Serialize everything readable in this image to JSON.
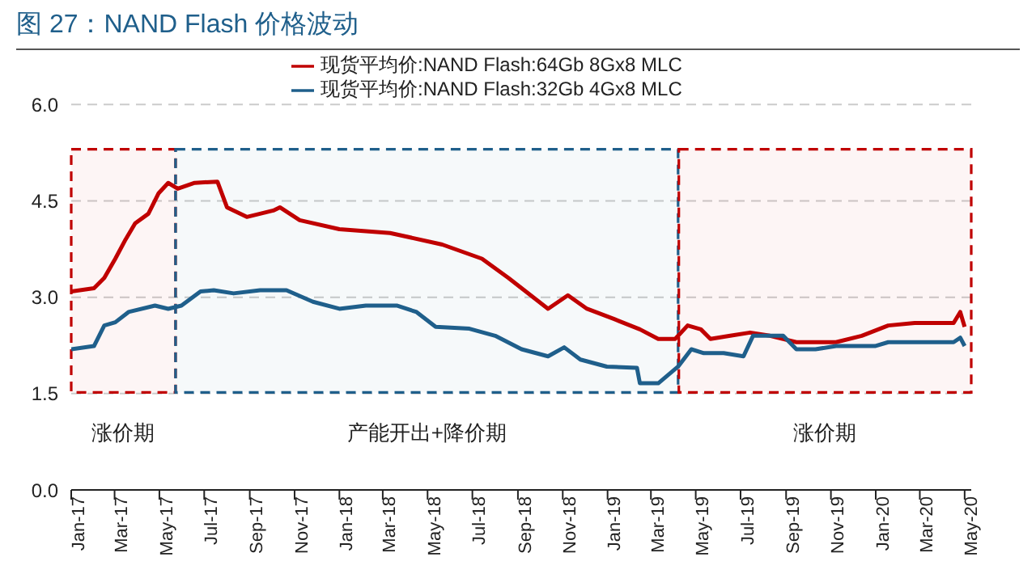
{
  "chart_data": {
    "type": "line",
    "title": "图 27：NAND Flash 价格波动",
    "series": [
      {
        "name": "现货平均价:NAND Flash:64Gb 8Gx8 MLC",
        "color": "#c00000",
        "x": [
          "2017-01-01",
          "2017-02-01",
          "2017-02-15",
          "2017-03-02",
          "2017-03-16",
          "2017-03-29",
          "2017-04-16",
          "2017-04-30",
          "2017-05-13",
          "2017-05-26",
          "2017-06-18",
          "2017-07-19",
          "2017-08-01",
          "2017-08-28",
          "2017-10-03",
          "2017-10-12",
          "2017-11-08",
          "2018-01-01",
          "2018-03-11",
          "2018-05-21",
          "2018-07-14",
          "2018-08-19",
          "2018-10-12",
          "2018-11-08",
          "2018-12-04",
          "2019-01-10",
          "2019-02-14",
          "2019-03-11",
          "2019-04-03",
          "2019-04-20",
          "2019-05-08",
          "2019-05-21",
          "2019-06-17",
          "2019-07-14",
          "2019-08-10",
          "2019-09-15",
          "2019-11-08",
          "2019-12-13",
          "2020-01-18",
          "2020-02-23",
          "2020-04-16",
          "2020-04-25",
          "2020-05-01"
        ],
        "values": [
          3.09,
          3.14,
          3.3,
          3.6,
          3.9,
          4.15,
          4.3,
          4.62,
          4.78,
          4.69,
          4.78,
          4.8,
          4.4,
          4.25,
          4.35,
          4.4,
          4.2,
          4.06,
          4.0,
          3.82,
          3.6,
          3.3,
          2.82,
          3.03,
          2.82,
          2.66,
          2.5,
          2.35,
          2.35,
          2.56,
          2.5,
          2.35,
          2.4,
          2.45,
          2.4,
          2.3,
          2.3,
          2.4,
          2.56,
          2.6,
          2.6,
          2.77,
          2.54
        ]
      },
      {
        "name": "现货平均价:NAND Flash:32Gb 4Gx8 MLC",
        "color": "#1f5f8b",
        "x": [
          "2017-01-01",
          "2017-02-01",
          "2017-02-15",
          "2017-03-02",
          "2017-03-20",
          "2017-04-25",
          "2017-05-13",
          "2017-05-31",
          "2017-06-26",
          "2017-07-14",
          "2017-08-10",
          "2017-09-15",
          "2017-10-21",
          "2017-11-26",
          "2018-01-01",
          "2018-02-06",
          "2018-03-20",
          "2018-04-16",
          "2018-05-12",
          "2018-06-27",
          "2018-08-01",
          "2018-09-06",
          "2018-10-12",
          "2018-11-03",
          "2018-11-25",
          "2018-12-31",
          "2019-02-10",
          "2019-02-14",
          "2019-03-11",
          "2019-04-07",
          "2019-04-25",
          "2019-05-12",
          "2019-06-08",
          "2019-07-05",
          "2019-07-18",
          "2019-08-28",
          "2019-09-15",
          "2019-10-11",
          "2019-11-08",
          "2019-12-31",
          "2020-01-18",
          "2020-04-16",
          "2020-04-25",
          "2020-05-01"
        ],
        "values": [
          2.19,
          2.24,
          2.56,
          2.61,
          2.77,
          2.87,
          2.82,
          2.87,
          3.09,
          3.11,
          3.06,
          3.11,
          3.11,
          2.93,
          2.82,
          2.87,
          2.87,
          2.77,
          2.54,
          2.51,
          2.4,
          2.19,
          2.08,
          2.22,
          2.03,
          1.92,
          1.9,
          1.66,
          1.66,
          1.92,
          2.19,
          2.13,
          2.13,
          2.08,
          2.4,
          2.4,
          2.19,
          2.19,
          2.24,
          2.24,
          2.3,
          2.3,
          2.37,
          2.24
        ]
      }
    ],
    "xlim": [
      "2017-01-01",
      "2020-05-10"
    ],
    "xticks": [
      {
        "value": "2017-01-01",
        "label": "Jan-17"
      },
      {
        "value": "2017-03-01",
        "label": "Mar-17"
      },
      {
        "value": "2017-05-01",
        "label": "May-17"
      },
      {
        "value": "2017-07-01",
        "label": "Jul-17"
      },
      {
        "value": "2017-09-01",
        "label": "Sep-17"
      },
      {
        "value": "2017-11-01",
        "label": "Nov-17"
      },
      {
        "value": "2018-01-01",
        "label": "Jan-18"
      },
      {
        "value": "2018-03-01",
        "label": "Mar-18"
      },
      {
        "value": "2018-05-01",
        "label": "May-18"
      },
      {
        "value": "2018-07-01",
        "label": "Jul-18"
      },
      {
        "value": "2018-09-01",
        "label": "Sep-18"
      },
      {
        "value": "2018-11-01",
        "label": "Nov-18"
      },
      {
        "value": "2019-01-01",
        "label": "Jan-19"
      },
      {
        "value": "2019-03-01",
        "label": "Mar-19"
      },
      {
        "value": "2019-05-01",
        "label": "May-19"
      },
      {
        "value": "2019-07-01",
        "label": "Jul-19"
      },
      {
        "value": "2019-09-01",
        "label": "Sep-19"
      },
      {
        "value": "2019-11-01",
        "label": "Nov-19"
      },
      {
        "value": "2020-01-01",
        "label": "Jan-20"
      },
      {
        "value": "2020-03-01",
        "label": "Mar-20"
      },
      {
        "value": "2020-05-01",
        "label": "May-20"
      }
    ],
    "ylim": [
      0,
      6
    ],
    "yticks": [
      {
        "value": 0,
        "label": "0.0"
      },
      1.5,
      {
        "value": 3,
        "label": "3.0"
      },
      4.5,
      {
        "value": 6,
        "label": "6.0"
      }
    ],
    "bands": [
      {
        "axis": "x",
        "from": "2017-01-01",
        "to": "2017-05-23",
        "label": "涨价期",
        "color": "#c00000"
      },
      {
        "axis": "x",
        "from": "2017-05-23",
        "to": "2019-04-07",
        "label": "产能开出+降价期",
        "color": "#1f5f8b"
      },
      {
        "axis": "x",
        "from": "2019-04-08",
        "to": "2020-05-10",
        "label": "涨价期",
        "color": "#c00000"
      }
    ],
    "grid": "y",
    "legend": "top",
    "marker": "none",
    "line_style": "solid"
  }
}
